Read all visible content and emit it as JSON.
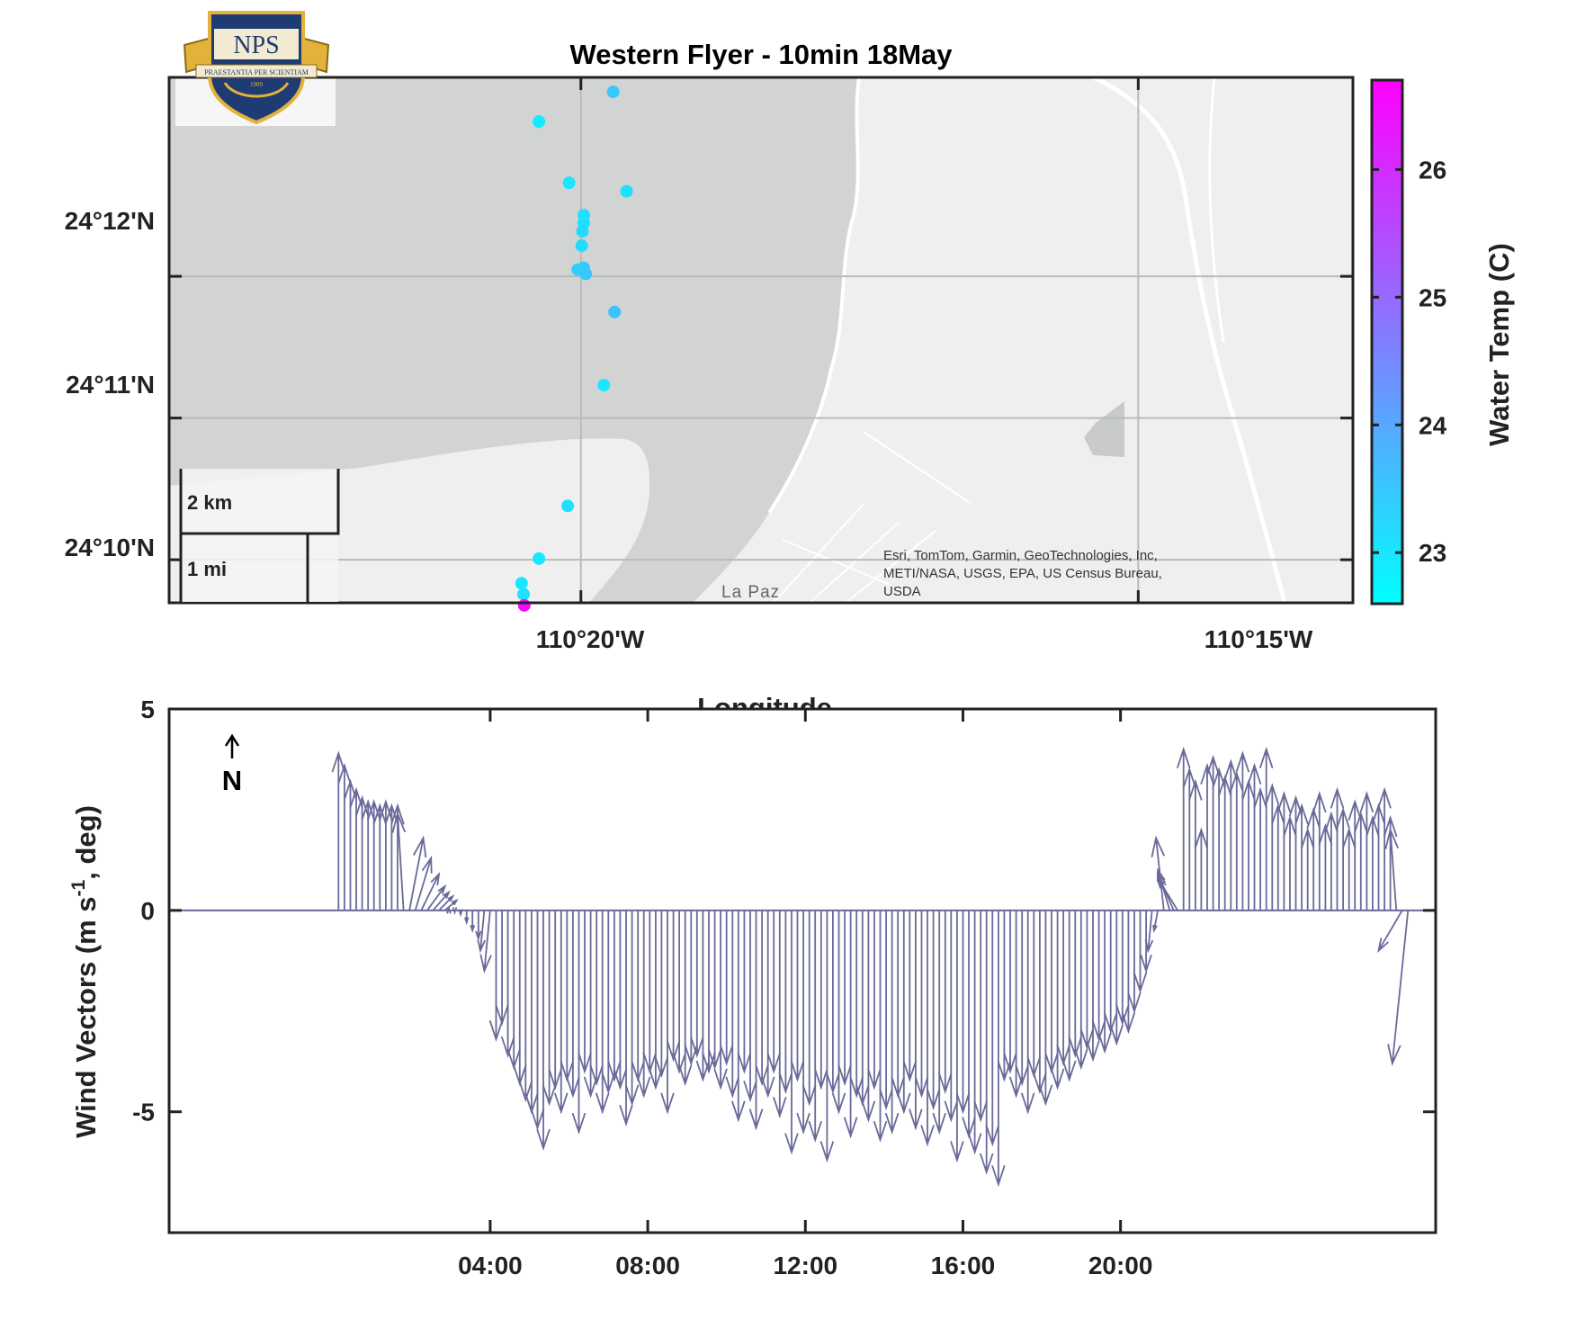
{
  "logo": {
    "name": "NPS",
    "motto": "PRAESTANTIA PER SCIENTIAM",
    "year": "1909"
  },
  "map": {
    "title": "Western Flyer - 10min 18May",
    "xlabel": "Longitude",
    "lon_ticks": [
      "110°20'W",
      "110°15'W"
    ],
    "lat_ticks": [
      "24°12'N",
      "24°11'N",
      "24°10'N"
    ],
    "scalebar": {
      "km": "2 km",
      "mi": "1 mi"
    },
    "attribution": [
      "Esri, TomTom, Garmin, GeoTechnologies, Inc,",
      "METI/NASA, USGS, EPA, US Census Bureau,",
      "USDA"
    ],
    "place_label": "La Paz",
    "colorbar": {
      "label": "Water Temp (C)",
      "ticks": [
        "23",
        "24",
        "25",
        "26"
      ],
      "min": 22.6,
      "max": 26.7,
      "color_low": "#00ffff",
      "color_high": "#ff00ff"
    },
    "land_color": "#efefef",
    "water_color": "#d2d4d4"
  },
  "chart_data": {
    "type": "scatter",
    "title": "Western Flyer - 10min 18May",
    "xlabel": "Longitude",
    "colorbar_label": "Water Temp (C)",
    "lon_range": [
      -110.3949,
      -110.2179
    ],
    "lat_range": [
      24.1616,
      24.2234
    ],
    "points": [
      {
        "lon": -110.3285,
        "lat": 24.2217,
        "temp": 23.5
      },
      {
        "lon": -110.3396,
        "lat": 24.2182,
        "temp": 22.9
      },
      {
        "lon": -110.3351,
        "lat": 24.211,
        "temp": 23.0
      },
      {
        "lon": -110.3265,
        "lat": 24.21,
        "temp": 23.1
      },
      {
        "lon": -110.3329,
        "lat": 24.2072,
        "temp": 23.1
      },
      {
        "lon": -110.3329,
        "lat": 24.2063,
        "temp": 23.1
      },
      {
        "lon": -110.3331,
        "lat": 24.2053,
        "temp": 23.2
      },
      {
        "lon": -110.3332,
        "lat": 24.2036,
        "temp": 23.2
      },
      {
        "lon": -110.3338,
        "lat": 24.2008,
        "temp": 23.4
      },
      {
        "lon": -110.3329,
        "lat": 24.201,
        "temp": 23.4
      },
      {
        "lon": -110.3326,
        "lat": 24.2003,
        "temp": 23.5
      },
      {
        "lon": -110.3283,
        "lat": 24.1958,
        "temp": 23.6
      },
      {
        "lon": -110.3299,
        "lat": 24.1872,
        "temp": 23.0
      },
      {
        "lon": -110.3353,
        "lat": 24.173,
        "temp": 23.1
      },
      {
        "lon": -110.3396,
        "lat": 24.1668,
        "temp": 23.0
      },
      {
        "lon": -110.3422,
        "lat": 24.1639,
        "temp": 23.0
      },
      {
        "lon": -110.3419,
        "lat": 24.1626,
        "temp": 23.1
      },
      {
        "lon": -110.3418,
        "lat": 24.1613,
        "temp": 26.6
      }
    ],
    "wind": {
      "type": "quiver",
      "ylabel": "Wind Vectors (m s^-1, deg)",
      "x_ticks": [
        "04:00",
        "08:00",
        "12:00",
        "16:00",
        "20:00"
      ],
      "y_ticks": [
        "5",
        "0",
        "-5"
      ],
      "x_range_hours": [
        -4.15,
        28.0
      ],
      "ylim": [
        -8,
        5
      ],
      "north_indicator": "N",
      "color": "#6a6a9a",
      "vectors": [
        [
          0.15,
          0.0,
          3.9
        ],
        [
          0.3,
          0.0,
          3.6
        ],
        [
          0.45,
          0.0,
          3.2
        ],
        [
          0.6,
          0.0,
          3.0
        ],
        [
          0.75,
          0.0,
          2.8
        ],
        [
          0.9,
          0.0,
          2.7
        ],
        [
          1.05,
          0.0,
          2.7
        ],
        [
          1.2,
          0.0,
          2.6
        ],
        [
          1.35,
          0.0,
          2.7
        ],
        [
          1.5,
          0.0,
          2.6
        ],
        [
          1.65,
          0.0,
          2.6
        ],
        [
          1.8,
          -0.15,
          2.4
        ],
        [
          1.95,
          0.35,
          1.8
        ],
        [
          2.1,
          0.4,
          1.3
        ],
        [
          2.25,
          0.45,
          0.9
        ],
        [
          2.4,
          0.45,
          0.6
        ],
        [
          2.55,
          0.4,
          0.45
        ],
        [
          2.7,
          0.35,
          0.35
        ],
        [
          2.85,
          0.3,
          0.25
        ],
        [
          2.95,
          0.0,
          0.05
        ],
        [
          3.1,
          0.0,
          -0.05
        ],
        [
          3.25,
          0.0,
          -0.1
        ],
        [
          3.4,
          0.0,
          -0.3
        ],
        [
          3.55,
          0.0,
          -0.5
        ],
        [
          3.7,
          0.0,
          -0.7
        ],
        [
          3.85,
          -0.1,
          -1.0
        ],
        [
          4.0,
          -0.15,
          -1.5
        ],
        [
          4.15,
          0.0,
          -3.2
        ],
        [
          4.3,
          0.0,
          -2.8
        ],
        [
          4.45,
          0.0,
          -3.6
        ],
        [
          4.6,
          0.0,
          -3.9
        ],
        [
          4.75,
          0.0,
          -4.3
        ],
        [
          4.9,
          0.0,
          -4.7
        ],
        [
          5.05,
          0.0,
          -5.0
        ],
        [
          5.2,
          0.0,
          -5.4
        ],
        [
          5.35,
          0.0,
          -5.9
        ],
        [
          5.5,
          0.0,
          -4.8
        ],
        [
          5.65,
          0.0,
          -4.4
        ],
        [
          5.8,
          0.0,
          -5.0
        ],
        [
          5.95,
          0.0,
          -4.2
        ],
        [
          6.1,
          0.0,
          -4.6
        ],
        [
          6.25,
          0.0,
          -5.5
        ],
        [
          6.4,
          0.0,
          -4.0
        ],
        [
          6.55,
          0.0,
          -4.6
        ],
        [
          6.7,
          0.0,
          -4.3
        ],
        [
          6.85,
          0.0,
          -5.0
        ],
        [
          7.0,
          0.0,
          -4.5
        ],
        [
          7.15,
          0.0,
          -4.2
        ],
        [
          7.3,
          0.0,
          -4.4
        ],
        [
          7.45,
          0.0,
          -5.3
        ],
        [
          7.6,
          0.0,
          -4.8
        ],
        [
          7.75,
          0.0,
          -4.2
        ],
        [
          7.9,
          0.0,
          -4.6
        ],
        [
          8.05,
          0.0,
          -4.0
        ],
        [
          8.2,
          0.0,
          -4.4
        ],
        [
          8.35,
          0.0,
          -4.1
        ],
        [
          8.5,
          0.0,
          -5.0
        ],
        [
          8.65,
          0.0,
          -3.7
        ],
        [
          8.8,
          0.0,
          -4.0
        ],
        [
          8.95,
          0.0,
          -4.3
        ],
        [
          9.1,
          0.0,
          -3.8
        ],
        [
          9.25,
          0.0,
          -3.6
        ],
        [
          9.4,
          0.0,
          -4.2
        ],
        [
          9.55,
          0.0,
          -4.0
        ],
        [
          9.7,
          0.0,
          -3.9
        ],
        [
          9.85,
          0.0,
          -4.4
        ],
        [
          10.0,
          0.0,
          -3.8
        ],
        [
          10.15,
          0.0,
          -4.6
        ],
        [
          10.3,
          0.0,
          -5.2
        ],
        [
          10.45,
          0.0,
          -4.0
        ],
        [
          10.6,
          0.0,
          -4.7
        ],
        [
          10.75,
          0.0,
          -5.4
        ],
        [
          10.9,
          0.0,
          -4.3
        ],
        [
          11.05,
          0.0,
          -4.6
        ],
        [
          11.2,
          0.0,
          -4.0
        ],
        [
          11.35,
          0.0,
          -5.1
        ],
        [
          11.5,
          0.0,
          -4.5
        ],
        [
          11.65,
          0.0,
          -6.0
        ],
        [
          11.8,
          0.0,
          -4.2
        ],
        [
          11.95,
          0.0,
          -5.5
        ],
        [
          12.1,
          0.0,
          -4.8
        ],
        [
          12.25,
          0.0,
          -5.7
        ],
        [
          12.4,
          0.0,
          -4.4
        ],
        [
          12.55,
          0.0,
          -6.2
        ],
        [
          12.7,
          0.0,
          -4.5
        ],
        [
          12.85,
          0.0,
          -5.0
        ],
        [
          13.0,
          0.0,
          -4.3
        ],
        [
          13.15,
          0.0,
          -5.6
        ],
        [
          13.3,
          0.0,
          -4.6
        ],
        [
          13.45,
          0.0,
          -4.8
        ],
        [
          13.6,
          0.0,
          -5.2
        ],
        [
          13.75,
          0.0,
          -4.4
        ],
        [
          13.9,
          0.0,
          -5.7
        ],
        [
          14.05,
          0.0,
          -4.9
        ],
        [
          14.2,
          0.0,
          -5.5
        ],
        [
          14.35,
          0.0,
          -4.6
        ],
        [
          14.5,
          0.0,
          -5.0
        ],
        [
          14.65,
          0.0,
          -4.2
        ],
        [
          14.8,
          0.0,
          -5.4
        ],
        [
          14.95,
          0.0,
          -4.6
        ],
        [
          15.1,
          0.0,
          -5.8
        ],
        [
          15.25,
          0.0,
          -4.9
        ],
        [
          15.4,
          0.0,
          -5.5
        ],
        [
          15.55,
          0.0,
          -4.5
        ],
        [
          15.7,
          0.0,
          -5.2
        ],
        [
          15.85,
          0.0,
          -6.2
        ],
        [
          16.0,
          0.0,
          -5.0
        ],
        [
          16.15,
          0.0,
          -5.6
        ],
        [
          16.3,
          0.0,
          -6.0
        ],
        [
          16.45,
          0.0,
          -5.2
        ],
        [
          16.6,
          0.0,
          -6.5
        ],
        [
          16.75,
          0.0,
          -5.8
        ],
        [
          16.9,
          0.0,
          -6.8
        ],
        [
          17.05,
          0.0,
          -4.2
        ],
        [
          17.2,
          0.0,
          -4.0
        ],
        [
          17.35,
          0.0,
          -4.6
        ],
        [
          17.5,
          0.0,
          -4.3
        ],
        [
          17.65,
          0.0,
          -5.0
        ],
        [
          17.8,
          0.0,
          -4.1
        ],
        [
          17.95,
          0.0,
          -4.5
        ],
        [
          18.1,
          0.0,
          -4.8
        ],
        [
          18.25,
          0.0,
          -4.0
        ],
        [
          18.4,
          0.0,
          -4.4
        ],
        [
          18.55,
          0.0,
          -3.8
        ],
        [
          18.7,
          0.0,
          -4.2
        ],
        [
          18.85,
          0.0,
          -3.6
        ],
        [
          19.0,
          0.0,
          -3.9
        ],
        [
          19.15,
          0.0,
          -3.4
        ],
        [
          19.3,
          0.0,
          -3.7
        ],
        [
          19.45,
          0.0,
          -3.2
        ],
        [
          19.6,
          0.0,
          -3.5
        ],
        [
          19.75,
          0.0,
          -3.0
        ],
        [
          19.9,
          0.0,
          -3.3
        ],
        [
          20.05,
          0.0,
          -2.8
        ],
        [
          20.2,
          0.0,
          -3.0
        ],
        [
          20.35,
          0.0,
          -2.5
        ],
        [
          20.5,
          0.0,
          -2.0
        ],
        [
          20.65,
          0.0,
          -1.5
        ],
        [
          20.8,
          -0.1,
          -1.0
        ],
        [
          20.95,
          -0.1,
          -0.5
        ],
        [
          21.1,
          -0.2,
          1.8
        ],
        [
          21.25,
          -0.3,
          1.0
        ],
        [
          21.35,
          -0.4,
          0.9
        ],
        [
          21.45,
          -0.5,
          0.8
        ],
        [
          21.6,
          0.0,
          4.0
        ],
        [
          21.75,
          0.0,
          3.5
        ],
        [
          21.9,
          0.0,
          3.2
        ],
        [
          22.05,
          0.0,
          2.0
        ],
        [
          22.2,
          0.0,
          3.6
        ],
        [
          22.35,
          0.0,
          3.8
        ],
        [
          22.5,
          0.0,
          3.5
        ],
        [
          22.65,
          0.0,
          3.3
        ],
        [
          22.8,
          0.0,
          3.7
        ],
        [
          22.95,
          0.0,
          3.4
        ],
        [
          23.1,
          0.0,
          3.9
        ],
        [
          23.25,
          0.0,
          3.2
        ],
        [
          23.4,
          0.0,
          3.6
        ],
        [
          23.55,
          0.0,
          3.0
        ],
        [
          23.7,
          0.0,
          4.0
        ],
        [
          23.85,
          0.0,
          3.1
        ],
        [
          24.0,
          0.0,
          2.6
        ],
        [
          24.15,
          0.0,
          2.9
        ],
        [
          24.3,
          0.0,
          2.3
        ],
        [
          24.45,
          0.0,
          2.8
        ],
        [
          24.6,
          0.0,
          2.6
        ],
        [
          24.75,
          0.0,
          2.0
        ],
        [
          24.9,
          0.0,
          2.5
        ],
        [
          25.05,
          0.0,
          2.9
        ],
        [
          25.2,
          0.0,
          2.1
        ],
        [
          25.35,
          0.0,
          2.4
        ],
        [
          25.5,
          0.0,
          3.0
        ],
        [
          25.65,
          0.0,
          2.5
        ],
        [
          25.8,
          0.0,
          2.0
        ],
        [
          25.95,
          0.0,
          2.7
        ],
        [
          26.1,
          0.0,
          2.4
        ],
        [
          26.25,
          0.0,
          2.9
        ],
        [
          26.4,
          0.0,
          2.3
        ],
        [
          26.55,
          0.0,
          2.6
        ],
        [
          26.7,
          0.0,
          3.0
        ],
        [
          26.85,
          0.0,
          2.3
        ],
        [
          27.0,
          -0.15,
          2.0
        ],
        [
          27.15,
          -0.6,
          -1.0
        ],
        [
          27.3,
          -0.4,
          -3.8
        ]
      ]
    }
  }
}
